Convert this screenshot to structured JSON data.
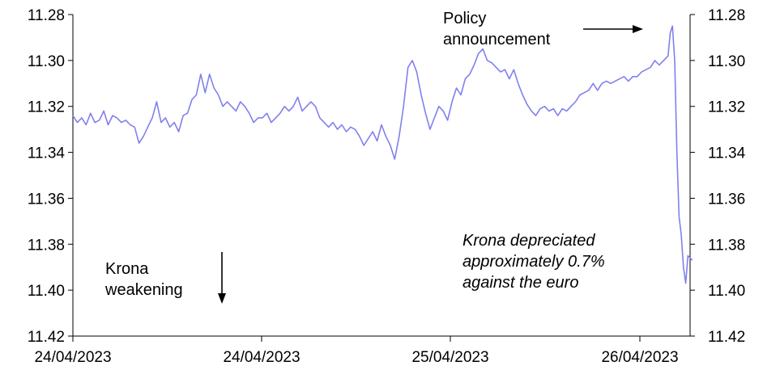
{
  "chart_data": {
    "type": "line",
    "title": "",
    "xlabel": "",
    "ylabel": "",
    "y_axis": {
      "inverted": true,
      "ylim": [
        11.28,
        11.42
      ],
      "ticks": [
        "11.28",
        "11.30",
        "11.32",
        "11.34",
        "11.36",
        "11.38",
        "11.40",
        "11.42"
      ],
      "mirrored_right": true
    },
    "x_axis": {
      "ticks": [
        "24/04/2023",
        "24/04/2023",
        "25/04/2023",
        "26/04/2023"
      ]
    },
    "grid": false,
    "legend": "none",
    "series": [
      {
        "color": "#8080ee",
        "points": [
          [
            0.0,
            11.324
          ],
          [
            0.01,
            11.327
          ],
          [
            0.02,
            11.325
          ],
          [
            0.03,
            11.328
          ],
          [
            0.04,
            11.323
          ],
          [
            0.05,
            11.327
          ],
          [
            0.06,
            11.326
          ],
          [
            0.07,
            11.322
          ],
          [
            0.08,
            11.328
          ],
          [
            0.09,
            11.324
          ],
          [
            0.1,
            11.325
          ],
          [
            0.11,
            11.327
          ],
          [
            0.12,
            11.326
          ],
          [
            0.13,
            11.328
          ],
          [
            0.14,
            11.329
          ],
          [
            0.15,
            11.336
          ],
          [
            0.16,
            11.333
          ],
          [
            0.17,
            11.329
          ],
          [
            0.18,
            11.325
          ],
          [
            0.19,
            11.318
          ],
          [
            0.2,
            11.327
          ],
          [
            0.21,
            11.325
          ],
          [
            0.22,
            11.329
          ],
          [
            0.23,
            11.327
          ],
          [
            0.24,
            11.331
          ],
          [
            0.25,
            11.324
          ],
          [
            0.26,
            11.323
          ],
          [
            0.27,
            11.317
          ],
          [
            0.28,
            11.315
          ],
          [
            0.29,
            11.306
          ],
          [
            0.3,
            11.314
          ],
          [
            0.31,
            11.306
          ],
          [
            0.32,
            11.312
          ],
          [
            0.33,
            11.315
          ],
          [
            0.34,
            11.32
          ],
          [
            0.35,
            11.318
          ],
          [
            0.36,
            11.32
          ],
          [
            0.37,
            11.322
          ],
          [
            0.38,
            11.318
          ],
          [
            0.39,
            11.32
          ],
          [
            0.4,
            11.323
          ],
          [
            0.41,
            11.327
          ],
          [
            0.42,
            11.325
          ],
          [
            0.43,
            11.325
          ],
          [
            0.44,
            11.323
          ],
          [
            0.45,
            11.327
          ],
          [
            0.46,
            11.325
          ],
          [
            0.47,
            11.323
          ],
          [
            0.48,
            11.32
          ],
          [
            0.49,
            11.322
          ],
          [
            0.5,
            11.32
          ],
          [
            0.51,
            11.316
          ],
          [
            0.52,
            11.322
          ],
          [
            0.53,
            11.32
          ],
          [
            0.54,
            11.318
          ],
          [
            0.55,
            11.32
          ],
          [
            0.56,
            11.325
          ],
          [
            0.57,
            11.327
          ],
          [
            0.58,
            11.329
          ],
          [
            0.59,
            11.327
          ],
          [
            0.6,
            11.33
          ],
          [
            0.61,
            11.328
          ],
          [
            0.62,
            11.331
          ],
          [
            0.63,
            11.329
          ],
          [
            0.64,
            11.33
          ],
          [
            0.65,
            11.333
          ],
          [
            0.66,
            11.337
          ],
          [
            0.67,
            11.334
          ],
          [
            0.68,
            11.331
          ],
          [
            0.69,
            11.335
          ],
          [
            0.7,
            11.328
          ],
          [
            0.71,
            11.333
          ],
          [
            0.72,
            11.337
          ],
          [
            0.73,
            11.343
          ],
          [
            0.74,
            11.333
          ],
          [
            0.75,
            11.32
          ],
          [
            0.76,
            11.303
          ],
          [
            0.77,
            11.3
          ],
          [
            0.78,
            11.305
          ],
          [
            0.79,
            11.315
          ],
          [
            0.8,
            11.323
          ],
          [
            0.81,
            11.33
          ],
          [
            0.82,
            11.325
          ],
          [
            0.83,
            11.32
          ],
          [
            0.84,
            11.322
          ],
          [
            0.85,
            11.326
          ],
          [
            0.86,
            11.318
          ],
          [
            0.87,
            11.312
          ],
          [
            0.88,
            11.315
          ],
          [
            0.89,
            11.308
          ],
          [
            0.9,
            11.306
          ],
          [
            0.91,
            11.302
          ],
          [
            0.92,
            11.297
          ],
          [
            0.93,
            11.295
          ],
          [
            0.94,
            11.3
          ],
          [
            0.95,
            11.301
          ],
          [
            0.96,
            11.303
          ],
          [
            0.97,
            11.305
          ],
          [
            0.98,
            11.304
          ],
          [
            0.99,
            11.308
          ],
          [
            1.0,
            11.304
          ],
          [
            1.01,
            11.31
          ],
          [
            1.02,
            11.315
          ],
          [
            1.03,
            11.319
          ],
          [
            1.04,
            11.322
          ],
          [
            1.05,
            11.324
          ],
          [
            1.06,
            11.321
          ],
          [
            1.07,
            11.32
          ],
          [
            1.08,
            11.322
          ],
          [
            1.09,
            11.321
          ],
          [
            1.1,
            11.324
          ],
          [
            1.11,
            11.321
          ],
          [
            1.12,
            11.322
          ],
          [
            1.13,
            11.32
          ],
          [
            1.14,
            11.318
          ],
          [
            1.15,
            11.315
          ],
          [
            1.16,
            11.314
          ],
          [
            1.17,
            11.313
          ],
          [
            1.18,
            11.31
          ],
          [
            1.19,
            11.313
          ],
          [
            1.2,
            11.31
          ],
          [
            1.21,
            11.309
          ],
          [
            1.22,
            11.31
          ],
          [
            1.23,
            11.309
          ],
          [
            1.24,
            11.308
          ],
          [
            1.25,
            11.307
          ],
          [
            1.26,
            11.309
          ],
          [
            1.27,
            11.307
          ],
          [
            1.28,
            11.307
          ],
          [
            1.29,
            11.305
          ],
          [
            1.3,
            11.304
          ],
          [
            1.31,
            11.303
          ],
          [
            1.32,
            11.3
          ],
          [
            1.33,
            11.302
          ],
          [
            1.34,
            11.3
          ],
          [
            1.35,
            11.298
          ],
          [
            1.355,
            11.288
          ],
          [
            1.36,
            11.285
          ],
          [
            1.365,
            11.3
          ],
          [
            1.37,
            11.34
          ],
          [
            1.375,
            11.368
          ],
          [
            1.38,
            11.376
          ],
          [
            1.385,
            11.39
          ],
          [
            1.39,
            11.397
          ],
          [
            1.395,
            11.385
          ],
          [
            1.4,
            11.386
          ],
          [
            1.405,
            11.387
          ]
        ]
      }
    ],
    "x_range": [
      0,
      1.4
    ]
  },
  "annotations": {
    "policy": "Policy\nannouncement",
    "policy_lines": [
      "Policy",
      "announcement"
    ],
    "krona_weakening_lines": [
      "Krona",
      "weakening"
    ],
    "depreciated_lines": [
      "Krona depreciated",
      "approximately 0.7%",
      "against the euro"
    ]
  }
}
